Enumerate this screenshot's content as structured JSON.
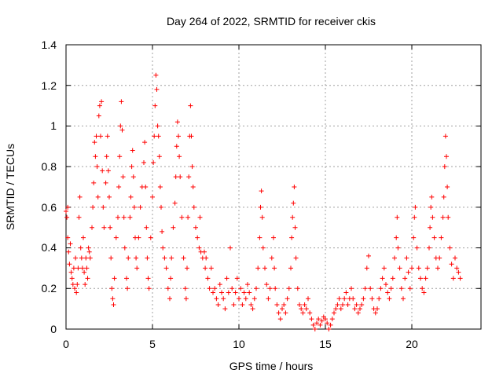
{
  "chart_data": {
    "type": "scatter",
    "title": "Day 264 of 2022, SRMTID for receiver ckis",
    "xlabel": "GPS time / hours",
    "ylabel": "SRMTID / TECUs",
    "xlim": [
      0,
      24
    ],
    "ylim": [
      0,
      1.4
    ],
    "x_ticks": [
      0,
      5,
      10,
      15,
      20
    ],
    "x_tick_labels": [
      "0",
      "5",
      "10",
      "15",
      "20"
    ],
    "y_ticks": [
      0,
      0.2,
      0.4,
      0.6,
      0.8,
      1.0,
      1.2,
      1.4
    ],
    "y_tick_labels": [
      "0",
      "0.2",
      "0.4",
      "0.6",
      "0.8",
      "1",
      "1.2",
      "1.4"
    ],
    "grid": true,
    "marker": "+",
    "series": [
      {
        "name": "SRMTID",
        "color": "#ff0000",
        "points": [
          [
            0.0,
            0.58
          ],
          [
            0.05,
            0.55
          ],
          [
            0.1,
            0.6
          ],
          [
            0.1,
            0.45
          ],
          [
            0.15,
            0.38
          ],
          [
            0.2,
            0.32
          ],
          [
            0.25,
            0.42
          ],
          [
            0.3,
            0.28
          ],
          [
            0.35,
            0.25
          ],
          [
            0.4,
            0.22
          ],
          [
            0.45,
            0.3
          ],
          [
            0.5,
            0.2
          ],
          [
            0.55,
            0.35
          ],
          [
            0.6,
            0.18
          ],
          [
            0.65,
            0.22
          ],
          [
            0.7,
            0.3
          ],
          [
            0.75,
            0.55
          ],
          [
            0.8,
            0.65
          ],
          [
            0.85,
            0.4
          ],
          [
            0.9,
            0.35
          ],
          [
            0.95,
            0.3
          ],
          [
            1.0,
            0.45
          ],
          [
            1.05,
            0.28
          ],
          [
            1.1,
            0.22
          ],
          [
            1.15,
            0.35
          ],
          [
            1.2,
            0.3
          ],
          [
            1.25,
            0.25
          ],
          [
            1.3,
            0.4
          ],
          [
            1.35,
            0.38
          ],
          [
            1.4,
            0.35
          ],
          [
            1.5,
            0.5
          ],
          [
            1.55,
            0.6
          ],
          [
            1.6,
            0.72
          ],
          [
            1.65,
            0.92
          ],
          [
            1.7,
            0.85
          ],
          [
            1.75,
            0.95
          ],
          [
            1.8,
            0.8
          ],
          [
            1.85,
            0.65
          ],
          [
            1.9,
            1.05
          ],
          [
            1.95,
            1.1
          ],
          [
            2.0,
            0.95
          ],
          [
            2.05,
            1.12
          ],
          [
            2.1,
            0.78
          ],
          [
            2.15,
            0.6
          ],
          [
            2.2,
            0.5
          ],
          [
            2.3,
            0.72
          ],
          [
            2.35,
            0.85
          ],
          [
            2.4,
            0.95
          ],
          [
            2.45,
            0.78
          ],
          [
            2.5,
            0.65
          ],
          [
            2.55,
            0.5
          ],
          [
            2.6,
            0.35
          ],
          [
            2.65,
            0.2
          ],
          [
            2.7,
            0.15
          ],
          [
            2.75,
            0.12
          ],
          [
            2.8,
            0.25
          ],
          [
            2.9,
            0.45
          ],
          [
            3.0,
            0.55
          ],
          [
            3.05,
            0.7
          ],
          [
            3.1,
            0.85
          ],
          [
            3.15,
            1.0
          ],
          [
            3.2,
            1.12
          ],
          [
            3.25,
            0.98
          ],
          [
            3.3,
            0.75
          ],
          [
            3.35,
            0.55
          ],
          [
            3.4,
            0.4
          ],
          [
            3.5,
            0.25
          ],
          [
            3.55,
            0.2
          ],
          [
            3.6,
            0.35
          ],
          [
            3.7,
            0.55
          ],
          [
            3.75,
            0.65
          ],
          [
            3.8,
            0.8
          ],
          [
            3.85,
            0.88
          ],
          [
            3.9,
            0.75
          ],
          [
            3.95,
            0.6
          ],
          [
            4.0,
            0.45
          ],
          [
            4.05,
            0.35
          ],
          [
            4.1,
            0.3
          ],
          [
            4.2,
            0.45
          ],
          [
            4.3,
            0.6
          ],
          [
            4.4,
            0.7
          ],
          [
            4.5,
            0.82
          ],
          [
            4.55,
            0.92
          ],
          [
            4.6,
            0.7
          ],
          [
            4.65,
            0.5
          ],
          [
            4.7,
            0.35
          ],
          [
            4.75,
            0.25
          ],
          [
            4.8,
            0.2
          ],
          [
            4.9,
            0.45
          ],
          [
            5.0,
            0.65
          ],
          [
            5.05,
            0.82
          ],
          [
            5.1,
            0.95
          ],
          [
            5.15,
            1.1
          ],
          [
            5.2,
            1.25
          ],
          [
            5.25,
            1.18
          ],
          [
            5.3,
            1.0
          ],
          [
            5.35,
            0.95
          ],
          [
            5.4,
            0.85
          ],
          [
            5.45,
            0.7
          ],
          [
            5.5,
            0.6
          ],
          [
            5.55,
            0.48
          ],
          [
            5.6,
            0.4
          ],
          [
            5.7,
            0.35
          ],
          [
            5.8,
            0.3
          ],
          [
            5.9,
            0.2
          ],
          [
            6.0,
            0.15
          ],
          [
            6.05,
            0.25
          ],
          [
            6.1,
            0.35
          ],
          [
            6.2,
            0.5
          ],
          [
            6.3,
            0.62
          ],
          [
            6.35,
            0.75
          ],
          [
            6.4,
            0.9
          ],
          [
            6.45,
            1.02
          ],
          [
            6.5,
            0.95
          ],
          [
            6.55,
            0.85
          ],
          [
            6.6,
            0.75
          ],
          [
            6.7,
            0.55
          ],
          [
            6.8,
            0.35
          ],
          [
            6.9,
            0.2
          ],
          [
            6.95,
            0.15
          ],
          [
            7.0,
            0.3
          ],
          [
            7.05,
            0.55
          ],
          [
            7.1,
            0.75
          ],
          [
            7.15,
            0.95
          ],
          [
            7.2,
            1.1
          ],
          [
            7.25,
            0.95
          ],
          [
            7.3,
            0.8
          ],
          [
            7.35,
            0.7
          ],
          [
            7.4,
            0.6
          ],
          [
            7.5,
            0.5
          ],
          [
            7.6,
            0.45
          ],
          [
            7.7,
            0.4
          ],
          [
            7.75,
            0.55
          ],
          [
            7.8,
            0.38
          ],
          [
            7.9,
            0.35
          ],
          [
            8.0,
            0.38
          ],
          [
            8.05,
            0.3
          ],
          [
            8.1,
            0.35
          ],
          [
            8.2,
            0.25
          ],
          [
            8.3,
            0.2
          ],
          [
            8.4,
            0.3
          ],
          [
            8.5,
            0.18
          ],
          [
            8.6,
            0.2
          ],
          [
            8.7,
            0.15
          ],
          [
            8.8,
            0.12
          ],
          [
            8.9,
            0.22
          ],
          [
            9.0,
            0.18
          ],
          [
            9.1,
            0.15
          ],
          [
            9.2,
            0.1
          ],
          [
            9.3,
            0.25
          ],
          [
            9.4,
            0.18
          ],
          [
            9.5,
            0.4
          ],
          [
            9.6,
            0.2
          ],
          [
            9.7,
            0.12
          ],
          [
            9.8,
            0.18
          ],
          [
            9.9,
            0.25
          ],
          [
            10.0,
            0.15
          ],
          [
            10.1,
            0.2
          ],
          [
            10.2,
            0.12
          ],
          [
            10.3,
            0.18
          ],
          [
            10.4,
            0.15
          ],
          [
            10.5,
            0.22
          ],
          [
            10.6,
            0.18
          ],
          [
            10.7,
            0.12
          ],
          [
            10.8,
            0.1
          ],
          [
            10.9,
            0.15
          ],
          [
            11.0,
            0.2
          ],
          [
            11.1,
            0.3
          ],
          [
            11.2,
            0.45
          ],
          [
            11.25,
            0.6
          ],
          [
            11.3,
            0.68
          ],
          [
            11.35,
            0.55
          ],
          [
            11.4,
            0.4
          ],
          [
            11.5,
            0.3
          ],
          [
            11.6,
            0.22
          ],
          [
            11.7,
            0.15
          ],
          [
            11.8,
            0.2
          ],
          [
            11.9,
            0.35
          ],
          [
            12.0,
            0.45
          ],
          [
            12.05,
            0.3
          ],
          [
            12.1,
            0.2
          ],
          [
            12.2,
            0.12
          ],
          [
            12.3,
            0.08
          ],
          [
            12.4,
            0.05
          ],
          [
            12.5,
            0.1
          ],
          [
            12.6,
            0.12
          ],
          [
            12.7,
            0.08
          ],
          [
            12.8,
            0.15
          ],
          [
            12.9,
            0.2
          ],
          [
            13.0,
            0.3
          ],
          [
            13.05,
            0.45
          ],
          [
            13.1,
            0.55
          ],
          [
            13.15,
            0.62
          ],
          [
            13.2,
            0.7
          ],
          [
            13.25,
            0.5
          ],
          [
            13.3,
            0.35
          ],
          [
            13.4,
            0.2
          ],
          [
            13.5,
            0.12
          ],
          [
            13.6,
            0.1
          ],
          [
            13.7,
            0.08
          ],
          [
            13.8,
            0.12
          ],
          [
            13.9,
            0.1
          ],
          [
            14.0,
            0.15
          ],
          [
            14.1,
            0.08
          ],
          [
            14.2,
            0.05
          ],
          [
            14.3,
            0.02
          ],
          [
            14.4,
            0.0
          ],
          [
            14.5,
            0.03
          ],
          [
            14.6,
            0.05
          ],
          [
            14.7,
            0.02
          ],
          [
            14.8,
            0.04
          ],
          [
            14.9,
            0.06
          ],
          [
            15.0,
            0.05
          ],
          [
            15.1,
            0.03
          ],
          [
            15.2,
            0.0
          ],
          [
            15.3,
            0.02
          ],
          [
            15.4,
            0.05
          ],
          [
            15.5,
            0.08
          ],
          [
            15.6,
            0.1
          ],
          [
            15.7,
            0.12
          ],
          [
            15.8,
            0.15
          ],
          [
            15.9,
            0.1
          ],
          [
            16.0,
            0.12
          ],
          [
            16.1,
            0.15
          ],
          [
            16.2,
            0.18
          ],
          [
            16.3,
            0.12
          ],
          [
            16.4,
            0.15
          ],
          [
            16.5,
            0.2
          ],
          [
            16.6,
            0.15
          ],
          [
            16.7,
            0.1
          ],
          [
            16.8,
            0.12
          ],
          [
            16.9,
            0.08
          ],
          [
            17.0,
            0.1
          ],
          [
            17.1,
            0.12
          ],
          [
            17.2,
            0.15
          ],
          [
            17.3,
            0.2
          ],
          [
            17.4,
            0.3
          ],
          [
            17.5,
            0.36
          ],
          [
            17.6,
            0.2
          ],
          [
            17.7,
            0.15
          ],
          [
            17.8,
            0.1
          ],
          [
            17.9,
            0.08
          ],
          [
            18.0,
            0.1
          ],
          [
            18.1,
            0.15
          ],
          [
            18.2,
            0.2
          ],
          [
            18.3,
            0.25
          ],
          [
            18.4,
            0.3
          ],
          [
            18.5,
            0.22
          ],
          [
            18.6,
            0.18
          ],
          [
            18.7,
            0.15
          ],
          [
            18.8,
            0.2
          ],
          [
            18.9,
            0.25
          ],
          [
            19.0,
            0.35
          ],
          [
            19.1,
            0.45
          ],
          [
            19.15,
            0.55
          ],
          [
            19.2,
            0.4
          ],
          [
            19.3,
            0.3
          ],
          [
            19.4,
            0.2
          ],
          [
            19.5,
            0.15
          ],
          [
            19.6,
            0.25
          ],
          [
            19.7,
            0.35
          ],
          [
            19.8,
            0.28
          ],
          [
            19.9,
            0.2
          ],
          [
            20.0,
            0.3
          ],
          [
            20.1,
            0.45
          ],
          [
            20.15,
            0.55
          ],
          [
            20.2,
            0.6
          ],
          [
            20.3,
            0.4
          ],
          [
            20.4,
            0.3
          ],
          [
            20.5,
            0.25
          ],
          [
            20.6,
            0.2
          ],
          [
            20.7,
            0.18
          ],
          [
            20.8,
            0.25
          ],
          [
            20.9,
            0.3
          ],
          [
            21.0,
            0.4
          ],
          [
            21.05,
            0.5
          ],
          [
            21.1,
            0.6
          ],
          [
            21.15,
            0.65
          ],
          [
            21.2,
            0.55
          ],
          [
            21.3,
            0.45
          ],
          [
            21.4,
            0.35
          ],
          [
            21.5,
            0.3
          ],
          [
            21.6,
            0.35
          ],
          [
            21.7,
            0.45
          ],
          [
            21.8,
            0.55
          ],
          [
            21.85,
            0.65
          ],
          [
            21.9,
            0.8
          ],
          [
            21.95,
            0.95
          ],
          [
            22.0,
            0.85
          ],
          [
            22.05,
            0.7
          ],
          [
            22.1,
            0.55
          ],
          [
            22.2,
            0.4
          ],
          [
            22.3,
            0.32
          ],
          [
            22.4,
            0.25
          ],
          [
            22.5,
            0.35
          ],
          [
            22.6,
            0.3
          ],
          [
            22.7,
            0.28
          ],
          [
            22.8,
            0.25
          ]
        ]
      }
    ]
  }
}
